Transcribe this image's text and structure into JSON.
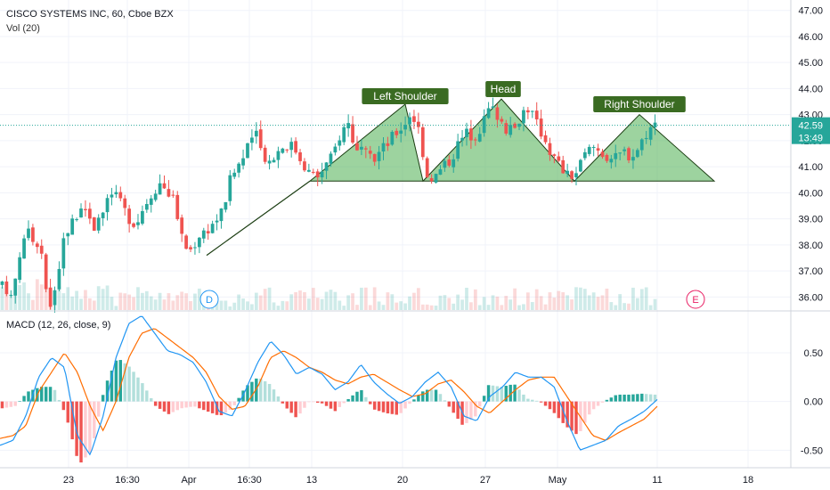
{
  "header": {
    "symbol_title": "CISCO SYSTEMS INC, 60, Cboe BZX",
    "volume_label": "Vol (20)",
    "macd_label": "MACD (12, 26, close, 9)"
  },
  "chart_data": [
    {
      "type": "candlestick",
      "title": "CISCO SYSTEMS INC, 60, Cboe BZX",
      "ylim": [
        35.5,
        47.4
      ],
      "y_ticks": [
        "47.00",
        "46.00",
        "45.00",
        "44.00",
        "43.00",
        "42.00",
        "41.00",
        "40.00",
        "39.00",
        "38.00",
        "37.00",
        "36.00"
      ],
      "x_ticks": [
        "23",
        "16:30",
        "Apr",
        "16:30",
        "13",
        "20",
        "27",
        "May",
        "11",
        "18"
      ],
      "last_price": "42.59",
      "countdown": "13:49",
      "grid": true,
      "price_path": [
        36.4,
        36.0,
        37.2,
        38.8,
        38.1,
        37.5,
        35.6,
        36.9,
        38.5,
        38.9,
        39.6,
        39.2,
        38.6,
        39.4,
        40.0,
        39.6,
        39.1,
        38.8,
        39.5,
        40.0,
        40.4,
        40.1,
        39.6,
        38.0,
        37.8,
        38.4,
        38.6,
        38.9,
        39.3,
        40.5,
        41.1,
        41.5,
        42.4,
        41.6,
        41.2,
        41.6,
        41.9,
        41.8,
        41.3,
        40.8,
        40.6,
        41.0,
        41.4,
        42.3,
        42.7,
        41.6,
        41.5,
        41.2,
        41.6,
        41.9,
        42.3,
        42.6,
        43.1,
        42.4,
        40.7,
        40.6,
        41.0,
        41.3,
        41.9,
        42.3,
        42.2,
        42.6,
        43.3,
        43.0,
        42.5,
        42.3,
        43.1,
        43.3,
        42.6,
        42.1,
        41.4,
        41.0,
        40.6,
        40.8,
        41.4,
        41.8,
        41.6,
        41.4,
        41.3,
        41.6,
        41.4,
        41.8,
        42.4,
        42.6
      ],
      "annotations": {
        "left_shoulder": "Left Shoulder",
        "head": "Head",
        "right_shoulder": "Right Shoulder"
      },
      "event_markers": [
        "D",
        "E"
      ],
      "colors": {
        "up": "#26a69a",
        "down": "#ef5350",
        "pattern_fill": "#4caf50",
        "annotation_bg": "#3a6b22",
        "macd": "#2196f3",
        "signal": "#ff6d00"
      }
    },
    {
      "type": "histogram-line",
      "name": "MACD (12, 26, close, 9)",
      "ylim": [
        -0.68,
        0.92
      ],
      "y_ticks": [
        "0.50",
        "0.00",
        "-0.50"
      ],
      "macd_path": [
        -0.45,
        -0.4,
        -0.15,
        0.25,
        0.45,
        0.35,
        -0.35,
        -0.55,
        -0.15,
        0.45,
        0.8,
        0.88,
        0.7,
        0.52,
        0.48,
        0.4,
        0.2,
        -0.1,
        -0.15,
        0.1,
        0.4,
        0.62,
        0.48,
        0.28,
        0.35,
        0.28,
        0.12,
        0.2,
        0.38,
        0.2,
        0.08,
        -0.02,
        0.05,
        0.2,
        0.3,
        0.15,
        -0.15,
        -0.2,
        0.05,
        0.15,
        0.3,
        0.25,
        0.25,
        0.15,
        -0.2,
        -0.5,
        -0.45,
        -0.4,
        -0.25,
        -0.18,
        -0.1,
        0.02
      ],
      "signal_path": [
        -0.38,
        -0.35,
        -0.25,
        0.1,
        0.3,
        0.5,
        0.3,
        -0.05,
        -0.3,
        0.0,
        0.45,
        0.7,
        0.75,
        0.65,
        0.55,
        0.45,
        0.3,
        0.05,
        -0.08,
        -0.05,
        0.15,
        0.45,
        0.52,
        0.45,
        0.35,
        0.3,
        0.22,
        0.18,
        0.25,
        0.28,
        0.2,
        0.12,
        0.05,
        0.08,
        0.18,
        0.22,
        0.1,
        -0.05,
        -0.12,
        0.0,
        0.12,
        0.22,
        0.25,
        0.25,
        0.05,
        -0.15,
        -0.35,
        -0.4,
        -0.32,
        -0.25,
        -0.18,
        -0.05
      ]
    }
  ]
}
